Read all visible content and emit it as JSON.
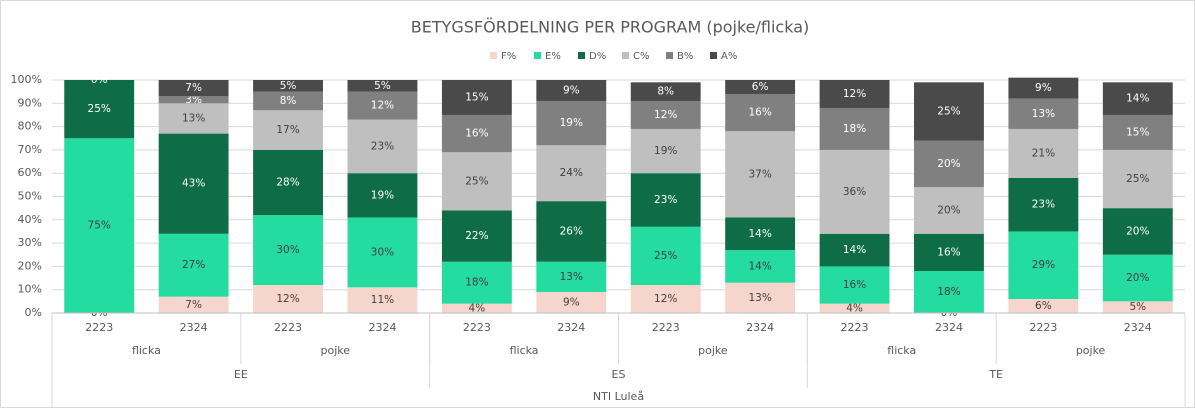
{
  "chart_data": {
    "type": "stacked_bar",
    "title": "BETYGSFÖRDELNING PER PROGRAM (pojke/flicka)",
    "categories": [
      "2223",
      "2324",
      "2223",
      "2324",
      "2223",
      "2324",
      "2223",
      "2324",
      "2223",
      "2324",
      "2223",
      "2324"
    ],
    "group_levels": [
      [
        "flicka",
        "pojke",
        "flicka",
        "pojke",
        "flicka",
        "pojke"
      ],
      [
        "EE",
        "ES",
        "TE"
      ],
      [
        "NTI Luleå"
      ]
    ],
    "ylim": [
      0,
      100
    ],
    "yticks": [
      {
        "value": 0,
        "label": "0%"
      },
      {
        "value": 10,
        "label": "10%"
      },
      {
        "value": 20,
        "label": "20%"
      },
      {
        "value": 30,
        "label": "30%"
      },
      {
        "value": 40,
        "label": "40%"
      },
      {
        "value": 50,
        "label": "50%"
      },
      {
        "value": 60,
        "label": "60%"
      },
      {
        "value": 70,
        "label": "70%"
      },
      {
        "value": 80,
        "label": "80%"
      },
      {
        "value": 90,
        "label": "90%"
      },
      {
        "value": 100,
        "label": "100%"
      }
    ],
    "grid": true,
    "series": [
      {
        "name": "F%",
        "color": "#f6d5cd",
        "label_color": "#404040",
        "values": [
          0,
          7,
          12,
          11,
          4,
          9,
          12,
          13,
          4,
          0,
          6,
          5
        ],
        "value_labels": [
          "0%",
          "7%",
          "12%",
          "11%",
          "4%",
          "9%",
          "12%",
          "13%",
          "4%",
          "0%",
          "6%",
          "5%"
        ]
      },
      {
        "name": "E%",
        "color": "#24dc9f",
        "label_color": "#404040",
        "values": [
          75,
          27,
          30,
          30,
          18,
          13,
          25,
          14,
          16,
          18,
          29,
          20
        ],
        "value_labels": [
          "75%",
          "27%",
          "30%",
          "30%",
          "18%",
          "13%",
          "25%",
          "14%",
          "16%",
          "18%",
          "29%",
          "20%"
        ]
      },
      {
        "name": "D%",
        "color": "#0e6d47",
        "label_color": "#ffffff",
        "values": [
          25,
          43,
          28,
          19,
          22,
          26,
          23,
          14,
          14,
          16,
          23,
          20
        ],
        "value_labels": [
          "25%",
          "43%",
          "28%",
          "19%",
          "22%",
          "26%",
          "23%",
          "14%",
          "14%",
          "16%",
          "23%",
          "20%"
        ]
      },
      {
        "name": "C%",
        "color": "#bfbfbf",
        "label_color": "#404040",
        "values": [
          0,
          13,
          17,
          23,
          25,
          24,
          19,
          37,
          36,
          20,
          21,
          25
        ],
        "value_labels": [
          null,
          "13%",
          "17%",
          "23%",
          "25%",
          "24%",
          "19%",
          "37%",
          "36%",
          "20%",
          "21%",
          "25%"
        ]
      },
      {
        "name": "B%",
        "color": "#808080",
        "label_color": "#ffffff",
        "values": [
          0,
          3,
          8,
          12,
          16,
          19,
          12,
          16,
          18,
          20,
          13,
          15
        ],
        "value_labels": [
          null,
          "3%",
          "8%",
          "12%",
          "16%",
          "19%",
          "12%",
          "16%",
          "18%",
          "20%",
          "13%",
          "15%"
        ]
      },
      {
        "name": "A%",
        "color": "#4a4a4a",
        "label_color": "#ffffff",
        "values": [
          0,
          7,
          5,
          5,
          15,
          9,
          8,
          6,
          12,
          25,
          9,
          14
        ],
        "value_labels": [
          "0%",
          "7%",
          "5%",
          "5%",
          "15%",
          "9%",
          "8%",
          "6%",
          "12%",
          "25%",
          "9%",
          "14%"
        ]
      }
    ]
  }
}
